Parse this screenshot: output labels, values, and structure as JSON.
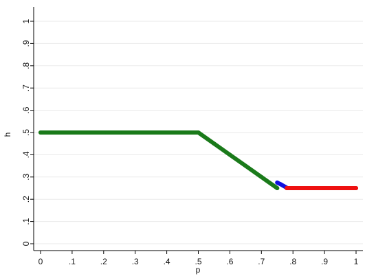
{
  "chart_data": {
    "type": "scatter",
    "title": "",
    "xlabel": "p",
    "ylabel": "h",
    "xlim": [
      0,
      1
    ],
    "ylim": [
      0,
      1
    ],
    "x_ticks": [
      {
        "value": 0,
        "label": "0"
      },
      {
        "value": 0.1,
        "label": ".1"
      },
      {
        "value": 0.2,
        "label": ".2"
      },
      {
        "value": 0.3,
        "label": ".3"
      },
      {
        "value": 0.4,
        "label": ".4"
      },
      {
        "value": 0.5,
        "label": ".5"
      },
      {
        "value": 0.6,
        "label": ".6"
      },
      {
        "value": 0.7,
        "label": ".7"
      },
      {
        "value": 0.8,
        "label": ".8"
      },
      {
        "value": 0.9,
        "label": ".9"
      },
      {
        "value": 1,
        "label": "1"
      }
    ],
    "y_ticks": [
      {
        "value": 0,
        "label": "0"
      },
      {
        "value": 0.1,
        "label": ".1"
      },
      {
        "value": 0.2,
        "label": ".2"
      },
      {
        "value": 0.3,
        "label": ".3"
      },
      {
        "value": 0.4,
        "label": ".4"
      },
      {
        "value": 0.5,
        "label": ".5"
      },
      {
        "value": 0.6,
        "label": ".6"
      },
      {
        "value": 0.7,
        "label": ".7"
      },
      {
        "value": 0.8,
        "label": ".8"
      },
      {
        "value": 0.9,
        "label": ".9"
      },
      {
        "value": 1,
        "label": "1"
      }
    ],
    "grid": "horizontal",
    "legend": "none",
    "series": [
      {
        "color": "#1a7a1a",
        "x": [
          0,
          0.05,
          0.1,
          0.15,
          0.2,
          0.25,
          0.3,
          0.35,
          0.4,
          0.45,
          0.5,
          0.55,
          0.6,
          0.65,
          0.7,
          0.75
        ],
        "y": [
          0.5,
          0.5,
          0.5,
          0.5,
          0.5,
          0.5,
          0.5,
          0.5,
          0.5,
          0.5,
          0.5,
          0.45,
          0.4,
          0.35,
          0.3,
          0.25
        ]
      },
      {
        "color": "#1010e0",
        "x": [
          0.75,
          0.76,
          0.77,
          0.78
        ],
        "y": [
          0.275,
          0.268,
          0.26,
          0.252
        ]
      },
      {
        "color": "#ee1111",
        "x": [
          0.78,
          0.8,
          0.85,
          0.9,
          0.95,
          1
        ],
        "y": [
          0.25,
          0.25,
          0.25,
          0.25,
          0.25,
          0.25
        ]
      }
    ]
  }
}
